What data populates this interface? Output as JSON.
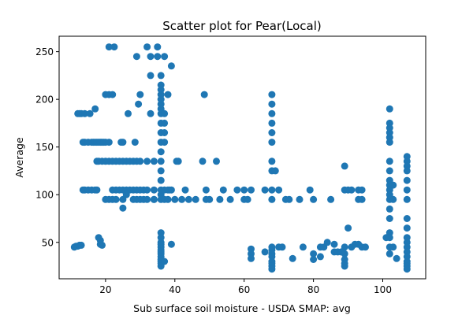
{
  "chart_data": {
    "type": "scatter",
    "title": "Scatter plot for Pear(Local)",
    "xlabel": "Sub surface soil moisture - USDA SMAP: avg",
    "ylabel": "Average",
    "xlim": [
      6.6,
      112.4
    ],
    "ylim": [
      11.8,
      266.2
    ],
    "xticks": [
      20,
      40,
      60,
      80,
      100
    ],
    "yticks": [
      50,
      100,
      150,
      200,
      250
    ],
    "grid": false,
    "point_color": "#1f77b4",
    "series": [
      {
        "points": [
          [
            11,
            45
          ],
          [
            11.5,
            46
          ],
          [
            12,
            46
          ],
          [
            12.5,
            47
          ],
          [
            13,
            47
          ],
          [
            12,
            185
          ],
          [
            12.5,
            185
          ],
          [
            13,
            185
          ],
          [
            14,
            185
          ],
          [
            13.5,
            105
          ],
          [
            14,
            105
          ],
          [
            15,
            105
          ],
          [
            16,
            105
          ],
          [
            17,
            105
          ],
          [
            17.5,
            105
          ],
          [
            13.5,
            155
          ],
          [
            14,
            155
          ],
          [
            15,
            155
          ],
          [
            16,
            155
          ],
          [
            16.5,
            155
          ],
          [
            17,
            155
          ],
          [
            17.5,
            155
          ],
          [
            18,
            155
          ],
          [
            18.5,
            155
          ],
          [
            19,
            155
          ],
          [
            19.5,
            155
          ],
          [
            20,
            155
          ],
          [
            21,
            155
          ],
          [
            15.5,
            185
          ],
          [
            17,
            190
          ],
          [
            18,
            55
          ],
          [
            18.5,
            52
          ],
          [
            18.5,
            48
          ],
          [
            19,
            47
          ],
          [
            17.5,
            135
          ],
          [
            18,
            135
          ],
          [
            19,
            135
          ],
          [
            20,
            135
          ],
          [
            21,
            135
          ],
          [
            22,
            135
          ],
          [
            23,
            135
          ],
          [
            24,
            135
          ],
          [
            25,
            135
          ],
          [
            26,
            135
          ],
          [
            27,
            135
          ],
          [
            28,
            135
          ],
          [
            29,
            135
          ],
          [
            30,
            135
          ],
          [
            32,
            135
          ],
          [
            34,
            135
          ],
          [
            20,
            205
          ],
          [
            21,
            205
          ],
          [
            22,
            205
          ],
          [
            20,
            95
          ],
          [
            21,
            95
          ],
          [
            22,
            95
          ],
          [
            23,
            95
          ],
          [
            21,
            255
          ],
          [
            22.5,
            255
          ],
          [
            22,
            105
          ],
          [
            23,
            105
          ],
          [
            24,
            105
          ],
          [
            25,
            105
          ],
          [
            26,
            105
          ],
          [
            27,
            105
          ],
          [
            28,
            105
          ],
          [
            29,
            105
          ],
          [
            30,
            105
          ],
          [
            31,
            105
          ],
          [
            32,
            105
          ],
          [
            34,
            105
          ],
          [
            24.5,
            155
          ],
          [
            25,
            155
          ],
          [
            26.5,
            185
          ],
          [
            25,
            95
          ],
          [
            25,
            86
          ],
          [
            26,
            100
          ],
          [
            28,
            95
          ],
          [
            29,
            95
          ],
          [
            30,
            95
          ],
          [
            31,
            95
          ],
          [
            32,
            95
          ],
          [
            34,
            95
          ],
          [
            29,
            245
          ],
          [
            29.5,
            195
          ],
          [
            30,
            205
          ],
          [
            28.5,
            155
          ],
          [
            32,
            255
          ],
          [
            33,
            185
          ],
          [
            33,
            225
          ],
          [
            33,
            245
          ],
          [
            35,
            255
          ],
          [
            35,
            245
          ],
          [
            34,
            95
          ],
          [
            36,
            95
          ],
          [
            36,
            100
          ],
          [
            36,
            105
          ],
          [
            36,
            115
          ],
          [
            36,
            125
          ],
          [
            36,
            135
          ],
          [
            36,
            145
          ],
          [
            36,
            155
          ],
          [
            36,
            165
          ],
          [
            36,
            175
          ],
          [
            36,
            185
          ],
          [
            36,
            190
          ],
          [
            36,
            195
          ],
          [
            36,
            200
          ],
          [
            36,
            205
          ],
          [
            36,
            210
          ],
          [
            36,
            215
          ],
          [
            36,
            225
          ],
          [
            36,
            25
          ],
          [
            36,
            28
          ],
          [
            36,
            30
          ],
          [
            36,
            32
          ],
          [
            36,
            35
          ],
          [
            36,
            38
          ],
          [
            36,
            40
          ],
          [
            36,
            42
          ],
          [
            36,
            45
          ],
          [
            36,
            48
          ],
          [
            36,
            50
          ],
          [
            36,
            55
          ],
          [
            36,
            60
          ],
          [
            37,
            245
          ],
          [
            37,
            185
          ],
          [
            37,
            175
          ],
          [
            37,
            165
          ],
          [
            37,
            155
          ],
          [
            37,
            105
          ],
          [
            37,
            95
          ],
          [
            37,
            30
          ],
          [
            38,
            95
          ],
          [
            38,
            105
          ],
          [
            38,
            205
          ],
          [
            38.5,
            105
          ],
          [
            39,
            235
          ],
          [
            39,
            48
          ],
          [
            39,
            105
          ],
          [
            40.5,
            135
          ],
          [
            41,
            135
          ],
          [
            40,
            95
          ],
          [
            42,
            95
          ],
          [
            43,
            105
          ],
          [
            44,
            95
          ],
          [
            46,
            95
          ],
          [
            48,
            135
          ],
          [
            48.5,
            205
          ],
          [
            49,
            105
          ],
          [
            49,
            95
          ],
          [
            50,
            95
          ],
          [
            52,
            135
          ],
          [
            53,
            95
          ],
          [
            54,
            105
          ],
          [
            56,
            95
          ],
          [
            58,
            105
          ],
          [
            60,
            105
          ],
          [
            60,
            95
          ],
          [
            61,
            95
          ],
          [
            62,
            105
          ],
          [
            62,
            43
          ],
          [
            62,
            38
          ],
          [
            62,
            33
          ],
          [
            66,
            105
          ],
          [
            66,
            40
          ],
          [
            68,
            205
          ],
          [
            68,
            195
          ],
          [
            68,
            185
          ],
          [
            68,
            175
          ],
          [
            68,
            165
          ],
          [
            68,
            155
          ],
          [
            68,
            135
          ],
          [
            68,
            125
          ],
          [
            68,
            105
          ],
          [
            68,
            95
          ],
          [
            68,
            45
          ],
          [
            68,
            42
          ],
          [
            68,
            38
          ],
          [
            68,
            35
          ],
          [
            68,
            30
          ],
          [
            68,
            28
          ],
          [
            68,
            25
          ],
          [
            68,
            22
          ],
          [
            69,
            125
          ],
          [
            70,
            105
          ],
          [
            70,
            45
          ],
          [
            71,
            45
          ],
          [
            72,
            95
          ],
          [
            73,
            95
          ],
          [
            74,
            33
          ],
          [
            76,
            95
          ],
          [
            77,
            45
          ],
          [
            79,
            105
          ],
          [
            80,
            38
          ],
          [
            80,
            32
          ],
          [
            80,
            95
          ],
          [
            82,
            35
          ],
          [
            82,
            45
          ],
          [
            83,
            45
          ],
          [
            84,
            50
          ],
          [
            85,
            95
          ],
          [
            86,
            40
          ],
          [
            86,
            48
          ],
          [
            87,
            40
          ],
          [
            88,
            40
          ],
          [
            89,
            45
          ],
          [
            89,
            130
          ],
          [
            89,
            38
          ],
          [
            89,
            32
          ],
          [
            89,
            28
          ],
          [
            89,
            25
          ],
          [
            89,
            105
          ],
          [
            90,
            105
          ],
          [
            90,
            65
          ],
          [
            91,
            105
          ],
          [
            91,
            45
          ],
          [
            92,
            48
          ],
          [
            93,
            105
          ],
          [
            93,
            48
          ],
          [
            93,
            95
          ],
          [
            94,
            95
          ],
          [
            94,
            45
          ],
          [
            94,
            105
          ],
          [
            95,
            45
          ],
          [
            101,
            55
          ],
          [
            102,
            190
          ],
          [
            102,
            175
          ],
          [
            102,
            170
          ],
          [
            102,
            165
          ],
          [
            102,
            160
          ],
          [
            102,
            155
          ],
          [
            102,
            135
          ],
          [
            102,
            125
          ],
          [
            102,
            115
          ],
          [
            102,
            110
          ],
          [
            102,
            105
          ],
          [
            102,
            100
          ],
          [
            102,
            95
          ],
          [
            102,
            85
          ],
          [
            102,
            75
          ],
          [
            102,
            60
          ],
          [
            102,
            55
          ],
          [
            102,
            45
          ],
          [
            102,
            38
          ],
          [
            103,
            110
          ],
          [
            103,
            95
          ],
          [
            103,
            45
          ],
          [
            104,
            33
          ],
          [
            107,
            140
          ],
          [
            107,
            135
          ],
          [
            107,
            130
          ],
          [
            107,
            125
          ],
          [
            107,
            115
          ],
          [
            107,
            105
          ],
          [
            107,
            95
          ],
          [
            107,
            75
          ],
          [
            107,
            65
          ],
          [
            107,
            55
          ],
          [
            107,
            50
          ],
          [
            107,
            45
          ],
          [
            107,
            40
          ],
          [
            107,
            35
          ],
          [
            107,
            30
          ],
          [
            107,
            28
          ],
          [
            107,
            25
          ],
          [
            107,
            22
          ]
        ]
      }
    ]
  }
}
